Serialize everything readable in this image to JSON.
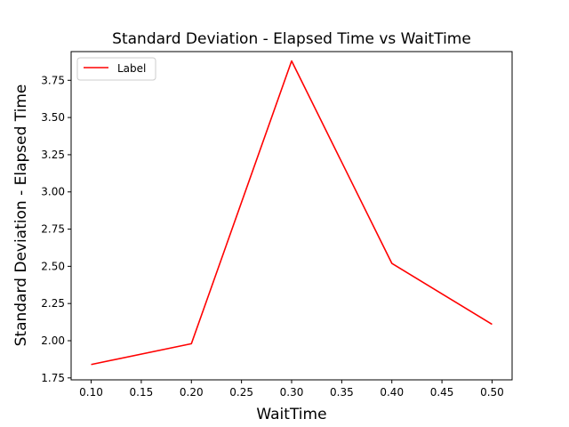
{
  "chart_data": {
    "type": "line",
    "title": "Standard Deviation - Elapsed Time vs WaitTime",
    "xlabel": "WaitTime",
    "ylabel": "Standard Deviation - Elapsed Time",
    "x": [
      0.1,
      0.2,
      0.3,
      0.4,
      0.5
    ],
    "xlim": [
      0.08,
      0.52
    ],
    "ylim": [
      1.737,
      3.943
    ],
    "x_ticks": [
      "0.10",
      "0.15",
      "0.20",
      "0.25",
      "0.30",
      "0.35",
      "0.40",
      "0.45",
      "0.50"
    ],
    "y_ticks": [
      "1.75",
      "2.00",
      "2.25",
      "2.50",
      "2.75",
      "3.00",
      "3.25",
      "3.50",
      "3.75"
    ],
    "series": [
      {
        "name": "Label",
        "color": "#ff0000",
        "values": [
          1.84,
          1.98,
          3.88,
          2.52,
          2.11
        ]
      }
    ],
    "grid": false,
    "legend_position": "top-left"
  }
}
